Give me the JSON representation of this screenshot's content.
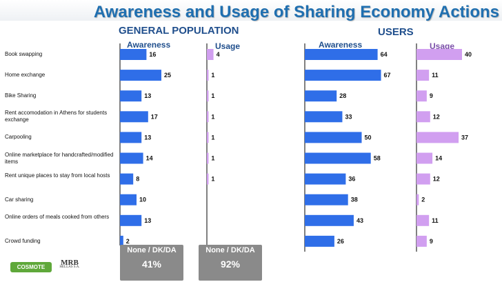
{
  "title": "Awareness and Usage of Sharing Economy Actions",
  "general_title": "GENERAL POPULATION",
  "users_title": "USERS",
  "awareness_label": "Awareness",
  "usage_label": "Usage",
  "none_box": {
    "label": "None / DK/DA",
    "general_awareness": "41%",
    "general_usage": "92%"
  },
  "logos": {
    "cosmote": "COSMOTE",
    "mrb": "MRB",
    "mrb_sub": "HELLAS S.A."
  },
  "colors": {
    "awareness": "#2f6ee8",
    "usage": "#d19ff0",
    "title": "#1f6fb0"
  },
  "chart_data": {
    "type": "bar",
    "orientation": "horizontal",
    "categories": [
      "Book swapping",
      "Home exchange",
      "Bike Sharing",
      "Rent accomodation in Athens for students exchange",
      "Carpooling",
      "Online marketplace for handcrafted/modified items",
      "Rent unique places to stay from local hosts",
      "Car sharing",
      "Online orders of meals cooked from others",
      "Crowd funding"
    ],
    "groups": [
      {
        "name": "GENERAL POPULATION",
        "series": [
          {
            "name": "Awareness",
            "values": [
              16,
              25,
              13,
              17,
              13,
              14,
              8,
              10,
              13,
              2
            ]
          },
          {
            "name": "Usage",
            "values": [
              4,
              1,
              1,
              1,
              1,
              1,
              1,
              null,
              null,
              null
            ]
          }
        ]
      },
      {
        "name": "USERS",
        "series": [
          {
            "name": "Awareness",
            "values": [
              64,
              67,
              28,
              33,
              50,
              58,
              36,
              38,
              43,
              26
            ]
          },
          {
            "name": "Usage",
            "values": [
              40,
              11,
              9,
              12,
              37,
              14,
              12,
              2,
              11,
              9
            ]
          }
        ]
      }
    ],
    "xlim": [
      0,
      100
    ]
  }
}
